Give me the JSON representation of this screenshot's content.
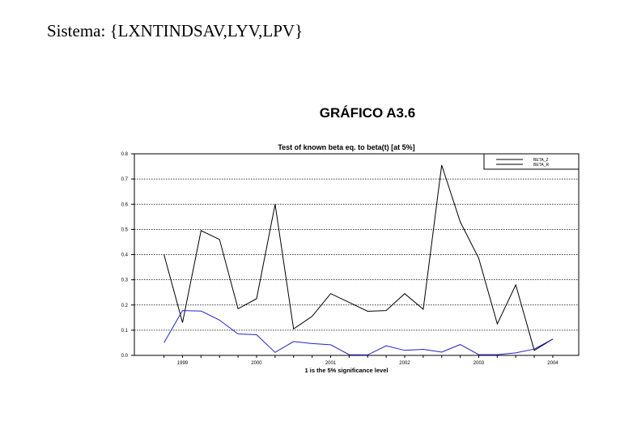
{
  "header": {
    "system_label": "Sistema: {LXNTINDSAV,LYV,LPV}",
    "figure_title": "GRÁFICO A3.6"
  },
  "chart_data": {
    "type": "line",
    "title": "Test of known beta eq. to beta(t) [at 5%]",
    "xlabel": "1 is the 5% significance level",
    "ylabel": "",
    "x_ticks": [
      "1999",
      "2000",
      "2001",
      "2002",
      "2003",
      "2004"
    ],
    "x": [
      1998.75,
      1999.0,
      1999.25,
      1999.5,
      1999.75,
      2000.0,
      2000.25,
      2000.5,
      2000.75,
      2001.0,
      2001.25,
      2001.5,
      2001.75,
      2002.0,
      2002.25,
      2002.5,
      2002.75,
      2003.0,
      2003.25,
      2003.5,
      2003.75,
      2004.0
    ],
    "xlim": [
      1998.35,
      2004.35
    ],
    "ylim": [
      0,
      0.8
    ],
    "y_ticks": [
      "0.0",
      "0.1",
      "0.2",
      "0.3",
      "0.4",
      "0.5",
      "0.6",
      "0.7",
      "0.8"
    ],
    "grid": "horizontal dotted",
    "legend_position": "top-right",
    "series": [
      {
        "name": "BETA_Z",
        "color": "#000000",
        "values": [
          0.4,
          0.13,
          0.495,
          0.46,
          0.185,
          0.225,
          0.6,
          0.105,
          0.155,
          0.245,
          0.21,
          0.175,
          0.178,
          0.245,
          0.183,
          0.755,
          0.53,
          0.385,
          0.125,
          0.28,
          0.02,
          0.065
        ]
      },
      {
        "name": "BETA_R",
        "color": "#2222cc",
        "values": [
          0.05,
          0.178,
          0.176,
          0.14,
          0.085,
          0.082,
          0.012,
          0.055,
          0.047,
          0.042,
          0.003,
          0.002,
          0.038,
          0.02,
          0.024,
          0.013,
          0.043,
          0.003,
          0.003,
          0.01,
          0.025,
          0.065
        ]
      }
    ]
  }
}
